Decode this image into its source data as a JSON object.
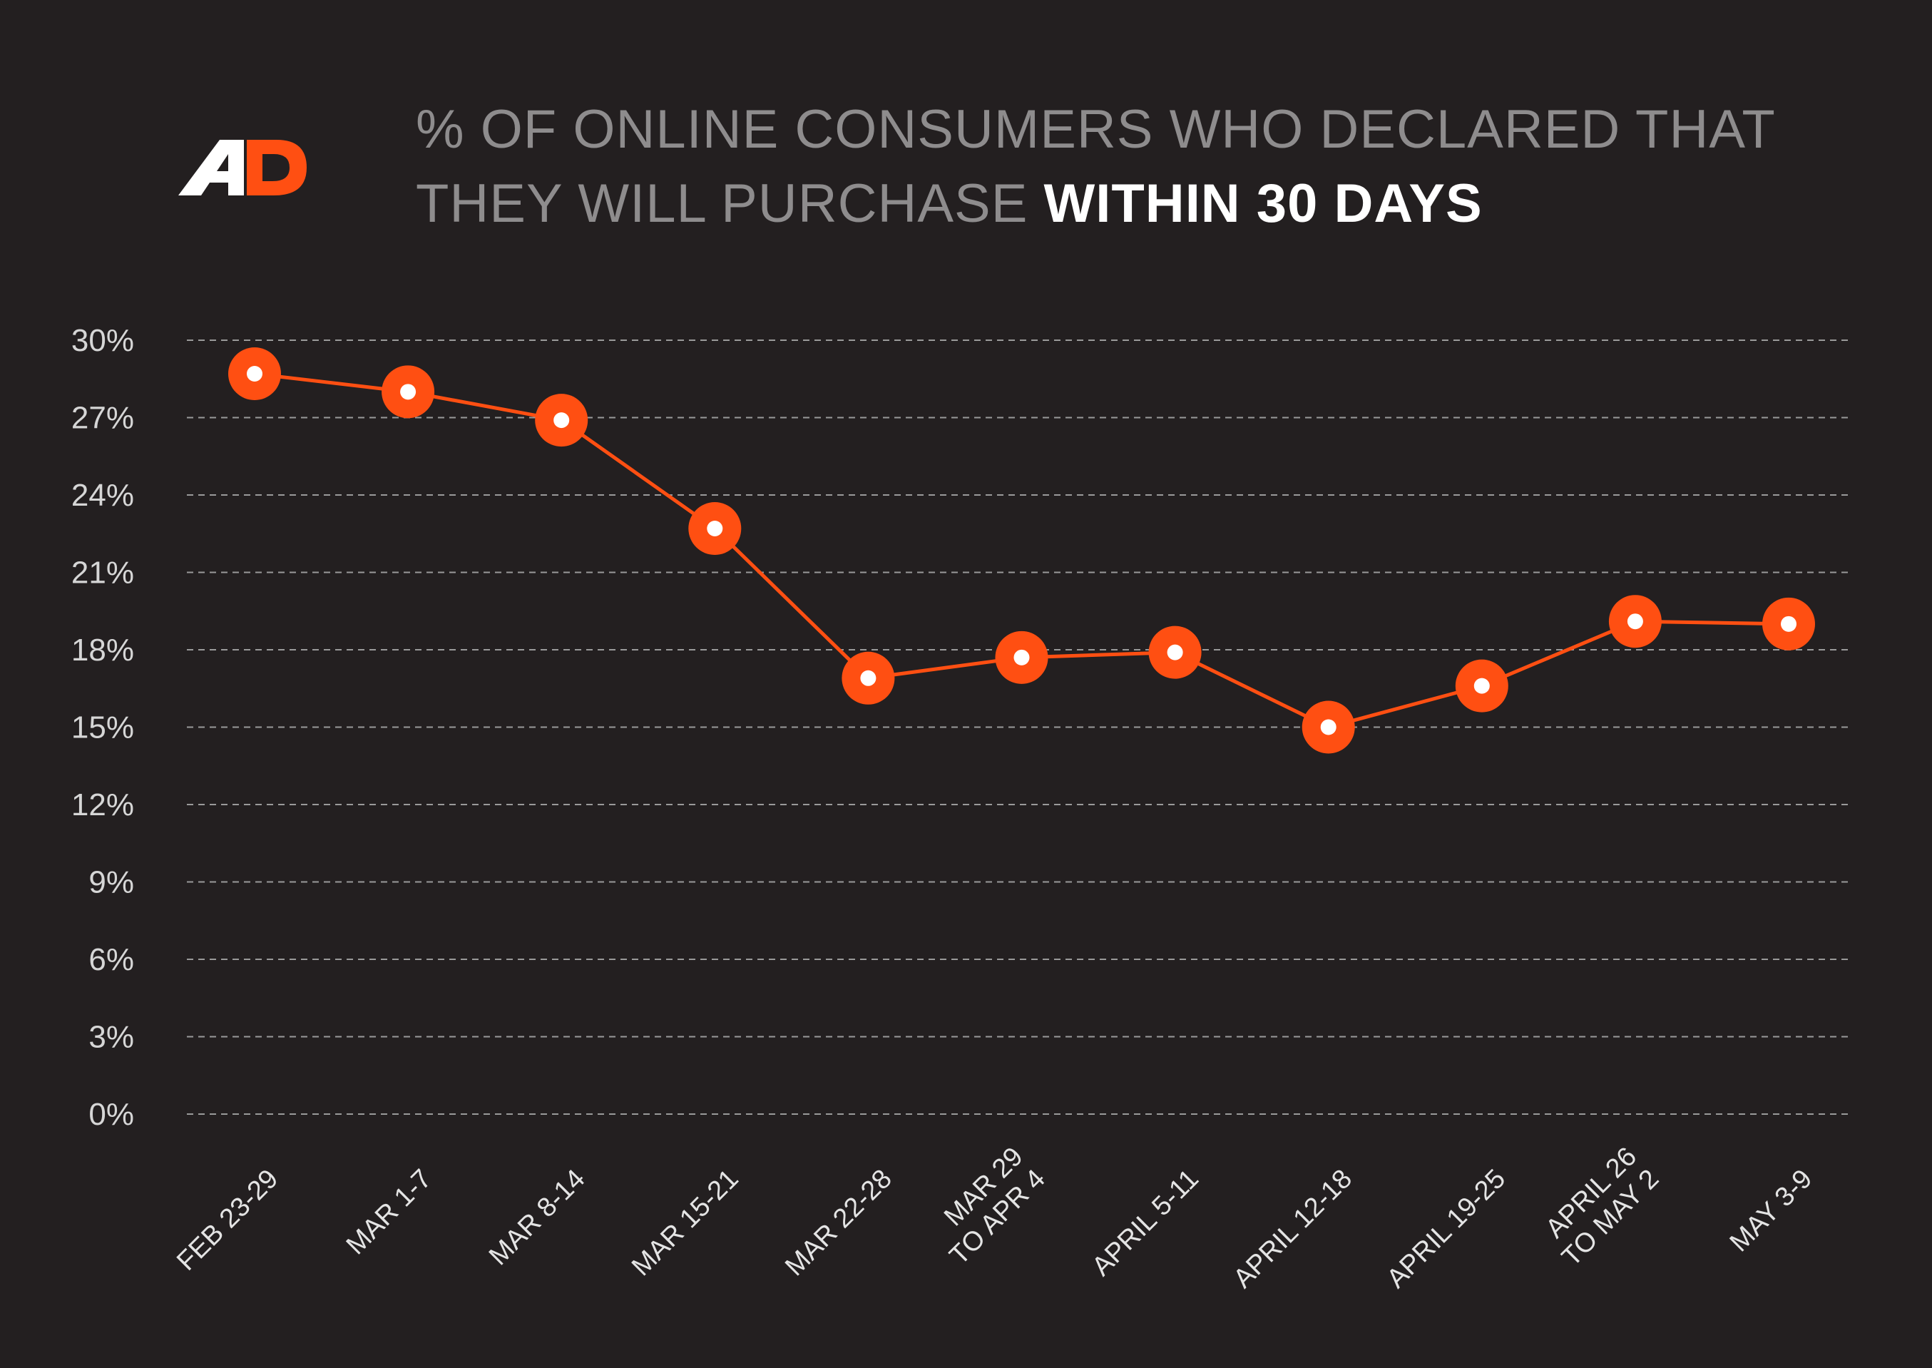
{
  "logo": {
    "text": "AD",
    "colors": {
      "a": "#ffffff",
      "d": "#ff4f12"
    }
  },
  "title": {
    "line1": "% OF ONLINE CONSUMERS WHO DECLARED THAT",
    "line2_prefix": "THEY WILL PURCHASE ",
    "line2_highlight": "WITHIN 30 DAYS"
  },
  "colors": {
    "background": "#231f20",
    "line": "#ff4f12",
    "marker_center": "#ffffff",
    "grid": "#9a9a9a",
    "title_muted": "#8e8c8d",
    "title_highlight": "#ffffff"
  },
  "chart_data": {
    "type": "line",
    "title": "% OF ONLINE CONSUMERS WHO DECLARED THAT THEY WILL PURCHASE WITHIN 30 DAYS",
    "categories": [
      [
        "FEB 23-29"
      ],
      [
        "MAR 1-7"
      ],
      [
        "MAR 8-14"
      ],
      [
        "MAR 15-21"
      ],
      [
        "MAR 22-28"
      ],
      [
        "MAR 29",
        "TO APR 4"
      ],
      [
        "APRIL 5-11"
      ],
      [
        "APRIL 12-18"
      ],
      [
        "APRIL 19-25"
      ],
      [
        "APRIL 26",
        "TO MAY 2"
      ],
      [
        "MAY 3-9"
      ]
    ],
    "series": [
      {
        "values": [
          28.7,
          28.0,
          26.9,
          22.7,
          16.9,
          17.7,
          17.9,
          15.0,
          16.6,
          19.1,
          19.0
        ]
      }
    ],
    "yticks": [
      "0%",
      "3%",
      "6%",
      "9%",
      "12%",
      "15%",
      "18%",
      "21%",
      "24%",
      "27%",
      "30%"
    ],
    "ylim": [
      0,
      30
    ],
    "y_tick_step": 3,
    "grid": true,
    "grid_style": "dashed",
    "xlabel": "",
    "ylabel": ""
  }
}
